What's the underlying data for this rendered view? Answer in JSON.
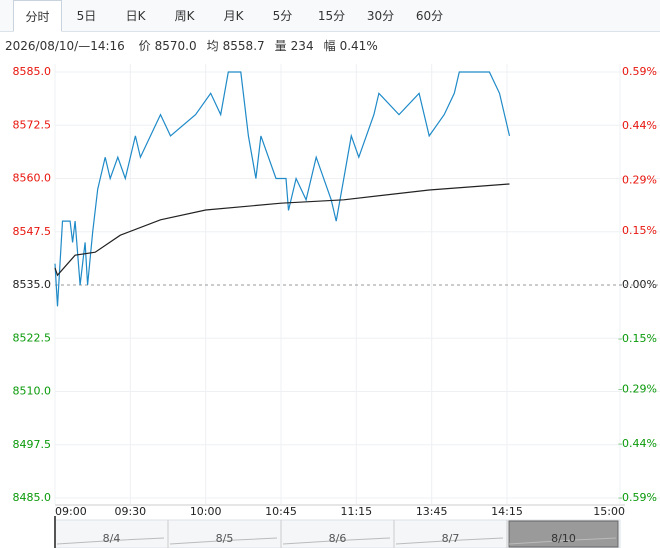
{
  "tabs": [
    "分时",
    "5日",
    "日K",
    "周K",
    "月K",
    "5分",
    "15分",
    "30分",
    "60分"
  ],
  "active_tab": 0,
  "info": {
    "time": "2026/08/10/—14:16",
    "items": [
      {
        "label": "价",
        "value": "8570.0"
      },
      {
        "label": "均",
        "value": "8558.7"
      },
      {
        "label": "量",
        "value": "234"
      },
      {
        "label": "幅",
        "value": "0.41%"
      }
    ]
  },
  "chart_data": {
    "type": "line",
    "xlim": [
      0,
      225
    ],
    "xticks": [
      {
        "value": 0,
        "label": "09:00"
      },
      {
        "value": 30,
        "label": "09:30"
      },
      {
        "value": 60,
        "label": "10:00"
      },
      {
        "value": 90,
        "label": "10:45"
      },
      {
        "value": 120,
        "label": "11:15"
      },
      {
        "value": 150,
        "label": "13:45"
      },
      {
        "value": 180,
        "label": "14:15"
      },
      {
        "value": 225,
        "label": "15:00"
      }
    ],
    "ylim": [
      8485,
      8585
    ],
    "yticks": [
      {
        "value": 8585,
        "label": "8585.0"
      },
      {
        "value": 8572.5,
        "label": "8572.5"
      },
      {
        "value": 8560,
        "label": "8560.0"
      },
      {
        "value": 8547.5,
        "label": "8547.5"
      },
      {
        "value": 8535,
        "label": "8535.0"
      },
      {
        "value": 8522.5,
        "label": "8522.5"
      },
      {
        "value": 8510,
        "label": "8510.0"
      },
      {
        "value": 8497.5,
        "label": "8497.5"
      },
      {
        "value": 8485,
        "label": "8485.0"
      }
    ],
    "y2lim": [
      -0.59,
      0.59
    ],
    "y2ticks": [
      {
        "value": 0.59,
        "label": "0.59%"
      },
      {
        "value": 0.44,
        "label": "0.44%"
      },
      {
        "value": 0.29,
        "label": "0.29%"
      },
      {
        "value": 0.15,
        "label": "0.15%"
      },
      {
        "value": 0,
        "label": "0.00%"
      },
      {
        "value": -0.15,
        "label": "-0.15%"
      },
      {
        "value": -0.29,
        "label": "-0.29%"
      },
      {
        "value": -0.44,
        "label": "-0.44%"
      },
      {
        "value": -0.59,
        "label": "-0.59%"
      }
    ],
    "base": 8535,
    "up_color": "#e8150d",
    "down_color": "#0a9a0a",
    "grid": true,
    "series": [
      {
        "name": "价",
        "color": "#1f8ac8",
        "x": [
          0,
          1,
          3,
          6,
          7,
          8,
          10,
          12,
          13,
          15,
          17,
          20,
          22,
          25,
          28,
          32,
          34,
          42,
          46,
          56,
          62,
          66,
          69,
          74,
          77,
          80,
          82,
          88,
          92,
          93,
          96,
          100,
          104,
          110,
          112,
          115,
          118,
          121,
          127,
          129,
          137,
          145,
          149,
          155,
          159,
          161,
          173,
          177,
          179,
          181
        ],
        "values": [
          8540,
          8530,
          8550,
          8550,
          8545,
          8550,
          8535,
          8545,
          8535,
          8547.5,
          8557.5,
          8565,
          8560,
          8565,
          8560,
          8570,
          8565,
          8575,
          8570,
          8575,
          8580,
          8575,
          8585,
          8585,
          8570,
          8560,
          8570,
          8560,
          8560,
          8552.5,
          8560,
          8555,
          8565,
          8555,
          8550,
          8560,
          8570,
          8565,
          8575,
          8580,
          8575,
          8580,
          8570,
          8575,
          8580,
          8585,
          8585,
          8580,
          8575,
          8570
        ]
      },
      {
        "name": "均",
        "color": "#222222",
        "x": [
          0,
          1,
          8,
          16,
          26,
          42,
          60,
          90,
          115,
          149,
          181
        ],
        "values": [
          8539,
          8537.3,
          8542,
          8542.7,
          8546.7,
          8550.3,
          8552.6,
          8554.2,
          8555,
          8557.3,
          8558.7
        ]
      }
    ]
  },
  "navigator": {
    "dates": [
      "8/4",
      "8/5",
      "8/6",
      "8/7",
      "8/10"
    ],
    "selected": 4
  }
}
